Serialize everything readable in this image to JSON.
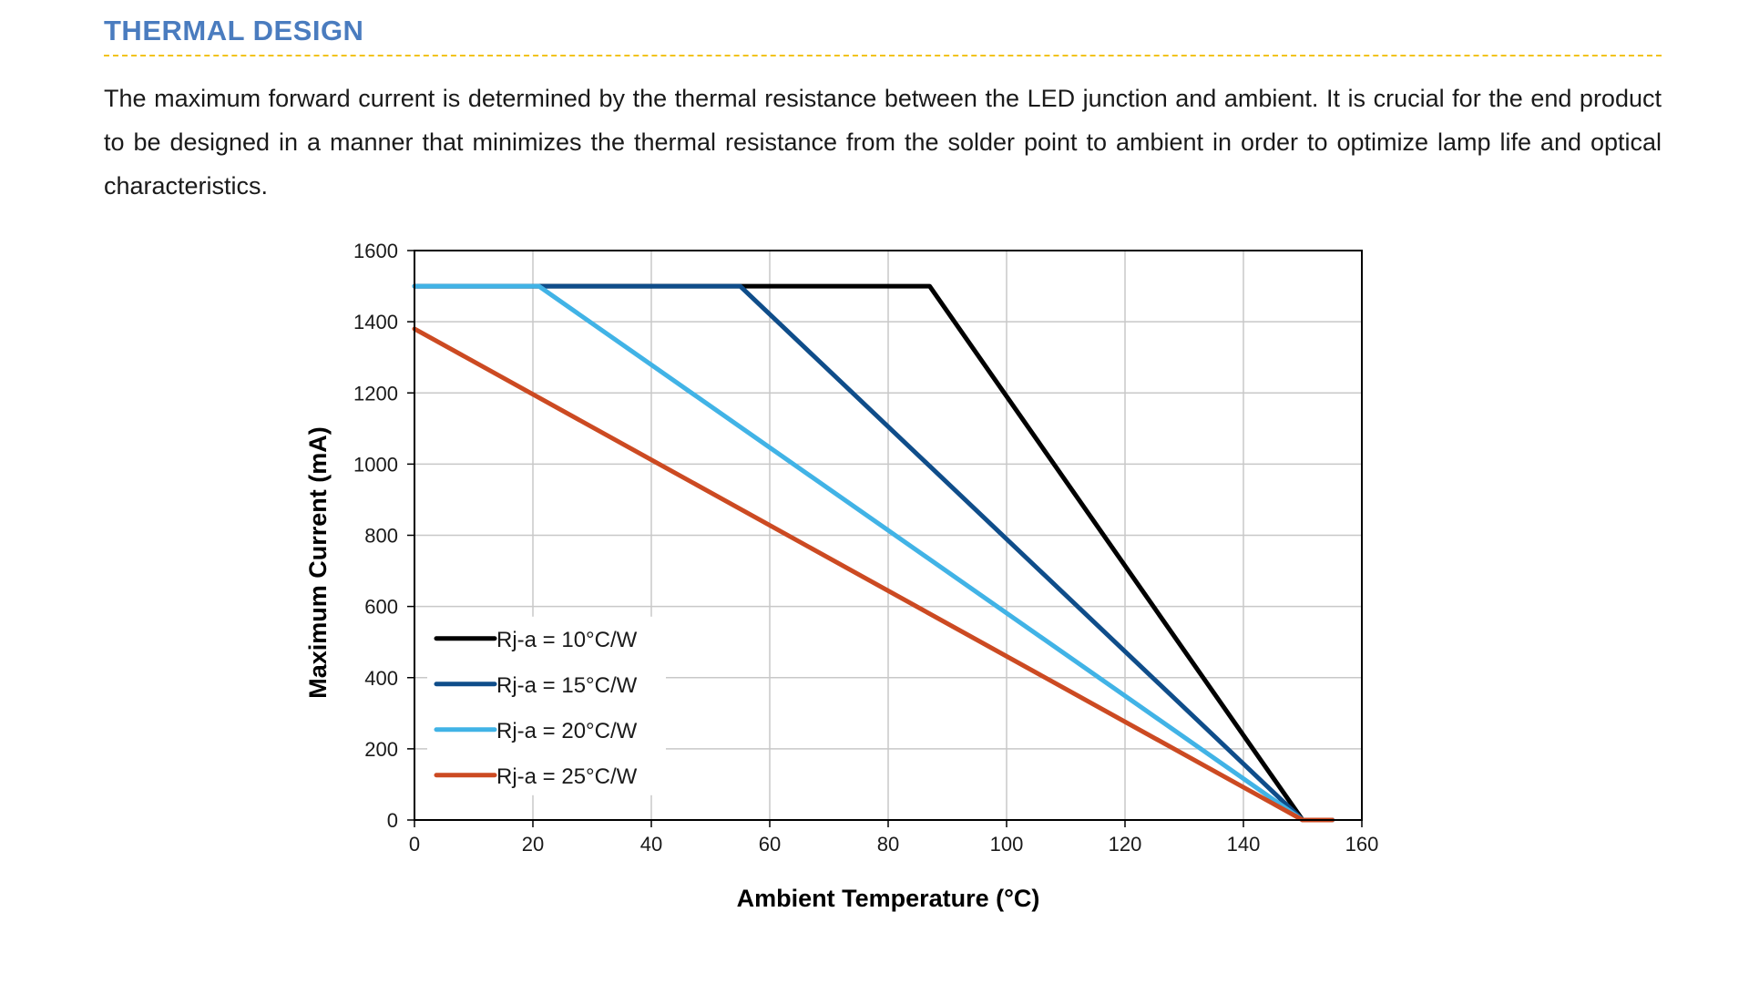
{
  "section": {
    "title": "THERMAL DESIGN",
    "accent_color": "#4a7cbf",
    "rule_color": "#f2c318"
  },
  "intro": {
    "text": "The maximum forward current is determined by the thermal resistance between the LED junction and ambient. It is crucial for the end product to be designed in a manner that minimizes the thermal resistance from the solder point to ambient in order to optimize lamp life and optical characteristics."
  },
  "chart_data": {
    "type": "line",
    "title": "",
    "xlabel": "Ambient Temperature (°C)",
    "ylabel": "Maximum Current (mA)",
    "xlim": [
      0,
      160
    ],
    "ylim": [
      0,
      1600
    ],
    "xticks": [
      0,
      20,
      40,
      60,
      80,
      100,
      120,
      140,
      160
    ],
    "yticks": [
      0,
      200,
      400,
      600,
      800,
      1000,
      1200,
      1400,
      1600
    ],
    "grid": true,
    "legend_position": "bottom-left",
    "series": [
      {
        "name": "Rj-a = 10°C/W",
        "color": "#000000",
        "points": [
          [
            0,
            1500
          ],
          [
            87,
            1500
          ],
          [
            150,
            0
          ],
          [
            155,
            0
          ]
        ]
      },
      {
        "name": "Rj-a = 15°C/W",
        "color": "#0f4d8a",
        "points": [
          [
            0,
            1500
          ],
          [
            55,
            1500
          ],
          [
            150,
            0
          ],
          [
            155,
            0
          ]
        ]
      },
      {
        "name": "Rj-a = 20°C/W",
        "color": "#41b3e6",
        "points": [
          [
            0,
            1500
          ],
          [
            21,
            1500
          ],
          [
            150,
            0
          ],
          [
            155,
            0
          ]
        ]
      },
      {
        "name": "Rj-a = 25°C/W",
        "color": "#cc4a22",
        "points": [
          [
            0,
            1380
          ],
          [
            150,
            0
          ],
          [
            155,
            0
          ]
        ]
      }
    ]
  }
}
